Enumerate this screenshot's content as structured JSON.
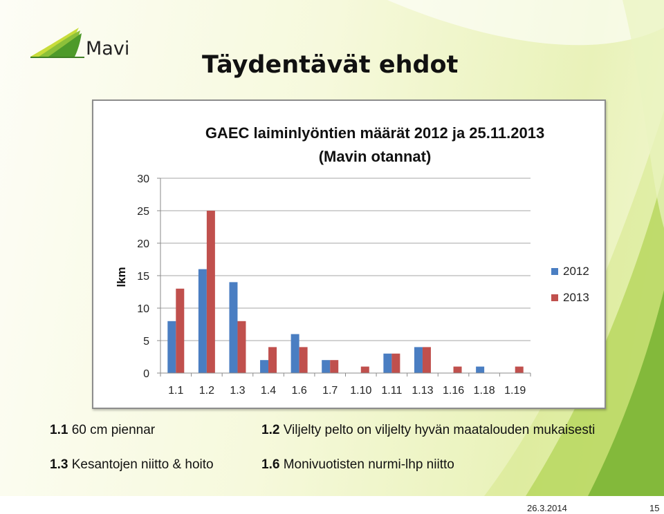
{
  "header": {
    "logo_text": "Mavi",
    "title": "Täydentävät ehdot"
  },
  "chart_data": {
    "type": "bar",
    "title_line1": "GAEC laiminlyöntien määrät 2012 ja 25.11.2013",
    "title_line2": "(Mavin otannat)",
    "ylabel": "lkm",
    "xlabel": "",
    "ylim": [
      0,
      30
    ],
    "yticks": [
      0,
      5,
      10,
      15,
      20,
      25,
      30
    ],
    "grid": true,
    "legend_position": "right",
    "categories": [
      "1.1",
      "1.2",
      "1.3",
      "1.4",
      "1.6",
      "1.7",
      "1.10",
      "1.11",
      "1.13",
      "1.16",
      "1.18",
      "1.19"
    ],
    "series": [
      {
        "name": "2012",
        "color": "#4a7ec2",
        "values": [
          8,
          16,
          14,
          2,
          6,
          2,
          0,
          3,
          4,
          0,
          1,
          0
        ]
      },
      {
        "name": "2013",
        "color": "#c0504d",
        "values": [
          13,
          25,
          8,
          4,
          4,
          2,
          1,
          3,
          4,
          1,
          0,
          1
        ]
      }
    ]
  },
  "footnotes": [
    {
      "code": "1.1",
      "text": "60 cm piennar"
    },
    {
      "code": "1.2",
      "text": "Viljelty pelto on viljelty hyvän maatalouden mukaisesti"
    },
    {
      "code": "1.3",
      "text": "Kesantojen niitto & hoito"
    },
    {
      "code": "1.6",
      "text": "Monivuotisten nurmi-lhp niitto"
    }
  ],
  "footer": {
    "date": "26.3.2014",
    "page": "15"
  },
  "colors": {
    "accent_green": "#6aa622",
    "accent_yellow": "#c8dc3c"
  }
}
